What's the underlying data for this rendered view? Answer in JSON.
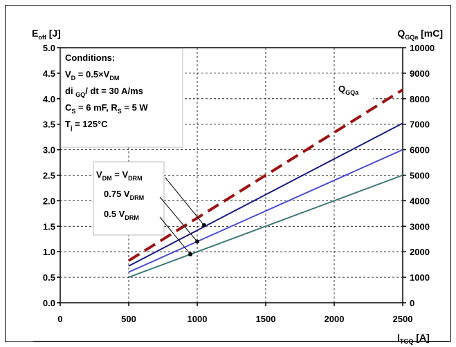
{
  "chart_data": {
    "type": "line",
    "x_axis": {
      "label": "I",
      "label_sub": "TGQ",
      "unit": "[A]",
      "min": 0,
      "max": 2500,
      "ticks": [
        0,
        500,
        1000,
        1500,
        2000,
        2500
      ]
    },
    "y_left": {
      "label": "E",
      "label_sub": "off",
      "unit": "[J]",
      "min": 0,
      "max": 5,
      "ticks": [
        "0.0",
        "0.5",
        "1.0",
        "1.5",
        "2.0",
        "2.5",
        "3.0",
        "3.5",
        "4.0",
        "4.5",
        "5.0"
      ]
    },
    "y_right": {
      "label": "Q",
      "label_sub": "GQa",
      "unit": "[mC]",
      "min": 0,
      "max": 10000,
      "ticks": [
        "0",
        "1000",
        "2000",
        "3000",
        "4000",
        "5000",
        "6000",
        "7000",
        "8000",
        "9000",
        "10000"
      ]
    },
    "grid": true,
    "conditions": {
      "title": "Conditions:",
      "lines": [
        {
          "main": "V",
          "sub": "D",
          "rest": " = 0.5×V",
          "sub2": "DM"
        },
        {
          "main": "di ",
          "sub": "GQ",
          "rest": "/ dt = 30 A/ms",
          "sub2": ""
        },
        {
          "main": "C",
          "sub": "S",
          "rest": " = 6 mF, R",
          "sub2": "S",
          "tail": " = 5 W"
        },
        {
          "main": "T",
          "sub": "j",
          "rest": " = 125°C",
          "sub2": ""
        }
      ]
    },
    "series": [
      {
        "name": "V_DM = V_DRM",
        "label": {
          "a": "V",
          "a_sub": "DM",
          "b": " = V",
          "b_sub": "DRM"
        },
        "color": "#1a1a80",
        "axis": "left",
        "x": [
          500,
          2500
        ],
        "y": [
          0.72,
          3.52
        ]
      },
      {
        "name": "0.75 V_DRM",
        "label": {
          "a": "0.75 V",
          "a_sub": "DRM",
          "b": "",
          "b_sub": ""
        },
        "color": "#4a4ed6",
        "axis": "left",
        "x": [
          500,
          2500
        ],
        "y": [
          0.6,
          3.0
        ]
      },
      {
        "name": "0.5 V_DRM",
        "label": {
          "a": "0.5   V",
          "a_sub": "DRM",
          "b": "",
          "b_sub": ""
        },
        "color": "#3e7a78",
        "axis": "left",
        "x": [
          500,
          2500
        ],
        "y": [
          0.5,
          2.5
        ]
      },
      {
        "name": "Q_GQa",
        "label": {
          "a": "Q",
          "a_sub": "GQa",
          "b": "",
          "b_sub": ""
        },
        "color": "#9b1414",
        "axis": "right",
        "dashed": true,
        "x": [
          500,
          2500
        ],
        "y": [
          1650,
          8350
        ]
      }
    ],
    "pointers": [
      {
        "series": 0,
        "x": 1050,
        "y": 1.52
      },
      {
        "series": 1,
        "x": 1000,
        "y": 1.2
      },
      {
        "series": 2,
        "x": 950,
        "y": 0.95
      }
    ]
  }
}
